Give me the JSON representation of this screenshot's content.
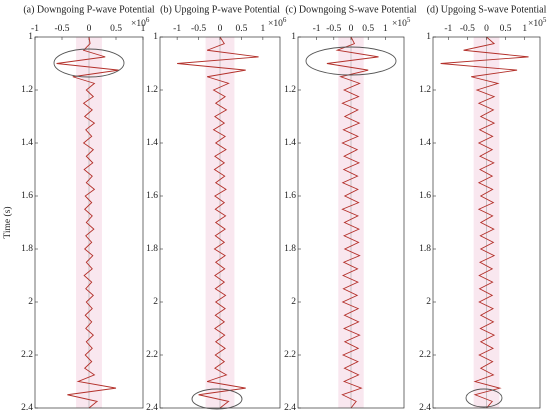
{
  "chart_data": [
    {
      "type": "line",
      "title": "(a) Downgoing P-wave Potential",
      "ylabel": "Time (s)",
      "x_scale": "×10",
      "x_scale_exponent": "6",
      "xlim": [
        -1,
        1
      ],
      "xticks": [
        -1,
        -0.5,
        0,
        0.5,
        1
      ],
      "ylim": [
        1,
        2.4
      ],
      "y_inverted": true,
      "yticks": [
        1,
        1.2,
        1.4,
        1.6,
        1.8,
        2,
        2.2,
        2.4
      ],
      "y": [
        1,
        1.025,
        1.05,
        1.075,
        1.1,
        1.125,
        1.15,
        1.175,
        1.2,
        1.225,
        1.25,
        1.275,
        1.3,
        1.325,
        1.35,
        1.375,
        1.4,
        1.425,
        1.45,
        1.475,
        1.5,
        1.525,
        1.55,
        1.575,
        1.6,
        1.625,
        1.65,
        1.675,
        1.7,
        1.725,
        1.75,
        1.775,
        1.8,
        1.825,
        1.85,
        1.875,
        1.9,
        1.925,
        1.95,
        1.975,
        2,
        2.025,
        2.05,
        2.075,
        2.1,
        2.125,
        2.15,
        2.175,
        2.2,
        2.225,
        2.25,
        2.275,
        2.3,
        2.325,
        2.35,
        2.375,
        2.4
      ],
      "series": [
        {
          "color": "#b3302a",
          "values": [
            0,
            0.02,
            -0.1,
            0.3,
            -0.6,
            0.55,
            -0.3,
            0.1,
            -0.05,
            0.08,
            -0.1,
            0.06,
            -0.08,
            0.1,
            -0.06,
            0.05,
            -0.1,
            0.08,
            -0.05,
            0.07,
            -0.09,
            0.06,
            -0.05,
            0.1,
            -0.07,
            0.05,
            -0.08,
            0.06,
            -0.05,
            0.09,
            -0.06,
            0.05,
            -0.08,
            0.07,
            -0.05,
            0.06,
            -0.09,
            0.05,
            -0.06,
            0.08,
            -0.05,
            0.06,
            -0.07,
            0.05,
            -0.06,
            0.08,
            -0.05,
            0.06,
            -0.07,
            0.05,
            -0.08,
            0.1,
            -0.2,
            0.5,
            -0.4,
            0.15,
            0
          ]
        }
      ]
    },
    {
      "type": "line",
      "title": "(b) Upgoing P-wave Potential",
      "x_scale": "×10",
      "x_scale_exponent": "6",
      "xlim": [
        -1.4,
        1.4
      ],
      "xticks": [
        -1,
        -0.5,
        0,
        0.5,
        1
      ],
      "ylim": [
        1,
        2.4
      ],
      "y_inverted": true,
      "yticks": [
        1,
        1.2,
        1.4,
        1.6,
        1.8,
        2,
        2.2,
        2.4
      ],
      "y": [
        1,
        1.025,
        1.05,
        1.075,
        1.1,
        1.125,
        1.15,
        1.175,
        1.2,
        1.225,
        1.25,
        1.275,
        1.3,
        1.325,
        1.35,
        1.375,
        1.4,
        1.425,
        1.45,
        1.475,
        1.5,
        1.525,
        1.55,
        1.575,
        1.6,
        1.625,
        1.65,
        1.675,
        1.7,
        1.725,
        1.75,
        1.775,
        1.8,
        1.825,
        1.85,
        1.875,
        1.9,
        1.925,
        1.95,
        1.975,
        2,
        2.025,
        2.05,
        2.075,
        2.1,
        2.125,
        2.15,
        2.175,
        2.2,
        2.225,
        2.25,
        2.275,
        2.3,
        2.325,
        2.35,
        2.375,
        2.4
      ],
      "series": [
        {
          "color": "#b3302a",
          "values": [
            0,
            0.1,
            -0.3,
            0.9,
            -1.0,
            0.6,
            -0.3,
            0.2,
            -0.15,
            0.12,
            -0.1,
            0.15,
            -0.12,
            0.1,
            -0.15,
            0.12,
            -0.1,
            0.14,
            -0.12,
            0.1,
            -0.13,
            0.11,
            -0.1,
            0.14,
            -0.12,
            0.1,
            -0.11,
            0.13,
            -0.1,
            0.12,
            -0.11,
            0.1,
            -0.13,
            0.12,
            -0.1,
            0.11,
            -0.12,
            0.1,
            -0.11,
            0.13,
            -0.1,
            0.12,
            -0.11,
            0.1,
            -0.12,
            0.11,
            -0.1,
            0.12,
            -0.11,
            0.1,
            -0.12,
            0.15,
            -0.3,
            0.6,
            -0.5,
            0.2,
            0
          ]
        }
      ]
    },
    {
      "type": "line",
      "title": "(c) Downgoing S-wave Potential",
      "x_scale": "×10",
      "x_scale_exponent": "5",
      "xlim": [
        -1.54,
        1.54
      ],
      "xticks": [
        -1,
        -0.5,
        0,
        0.5,
        1
      ],
      "ylim": [
        1,
        2.4
      ],
      "y_inverted": true,
      "yticks": [
        1,
        1.2,
        1.4,
        1.6,
        1.8,
        2,
        2.2,
        2.4
      ],
      "y": [
        1,
        1.025,
        1.05,
        1.075,
        1.1,
        1.125,
        1.15,
        1.175,
        1.2,
        1.225,
        1.25,
        1.275,
        1.3,
        1.325,
        1.35,
        1.375,
        1.4,
        1.425,
        1.45,
        1.475,
        1.5,
        1.525,
        1.55,
        1.575,
        1.6,
        1.625,
        1.65,
        1.675,
        1.7,
        1.725,
        1.75,
        1.775,
        1.8,
        1.825,
        1.85,
        1.875,
        1.9,
        1.925,
        1.95,
        1.975,
        2,
        2.025,
        2.05,
        2.075,
        2.1,
        2.125,
        2.15,
        2.175,
        2.2,
        2.225,
        2.25,
        2.275,
        2.3,
        2.325,
        2.35,
        2.375,
        2.4
      ],
      "series": [
        {
          "color": "#b3302a",
          "values": [
            0,
            0.1,
            -0.4,
            0.8,
            -0.7,
            0.5,
            -0.3,
            0.25,
            -0.2,
            0.22,
            -0.25,
            0.2,
            -0.18,
            0.24,
            -0.22,
            0.2,
            -0.25,
            0.18,
            -0.2,
            0.23,
            -0.21,
            0.19,
            -0.24,
            0.2,
            -0.18,
            0.22,
            -0.25,
            0.2,
            -0.19,
            0.23,
            -0.2,
            0.22,
            -0.18,
            0.25,
            -0.21,
            0.19,
            -0.23,
            0.2,
            -0.22,
            0.18,
            -0.24,
            0.21,
            -0.19,
            0.22,
            -0.2,
            0.25,
            -0.18,
            0.21,
            -0.23,
            0.2,
            -0.19,
            0.22,
            -0.2,
            0.3,
            -0.25,
            0.15,
            0
          ]
        }
      ]
    },
    {
      "type": "line",
      "title": "(d) Upgoing S-wave Potential",
      "x_scale": "×10",
      "x_scale_exponent": "5",
      "xlim": [
        -1.4,
        1.4
      ],
      "xticks": [
        -1,
        -0.5,
        0,
        0.5,
        1
      ],
      "ylim": [
        1,
        2.4
      ],
      "y_inverted": true,
      "yticks": [
        1,
        1.2,
        1.4,
        1.6,
        1.8,
        2,
        2.2,
        2.4
      ],
      "y": [
        1,
        1.025,
        1.05,
        1.075,
        1.1,
        1.125,
        1.15,
        1.175,
        1.2,
        1.225,
        1.25,
        1.275,
        1.3,
        1.325,
        1.35,
        1.375,
        1.4,
        1.425,
        1.45,
        1.475,
        1.5,
        1.525,
        1.55,
        1.575,
        1.6,
        1.625,
        1.65,
        1.675,
        1.7,
        1.725,
        1.75,
        1.775,
        1.8,
        1.825,
        1.85,
        1.875,
        1.9,
        1.925,
        1.95,
        1.975,
        2,
        2.025,
        2.05,
        2.075,
        2.1,
        2.125,
        2.15,
        2.175,
        2.2,
        2.225,
        2.25,
        2.275,
        2.3,
        2.325,
        2.35,
        2.375,
        2.4
      ],
      "series": [
        {
          "color": "#b3302a",
          "values": [
            0,
            0.2,
            -0.6,
            1.1,
            -1.2,
            0.8,
            -0.4,
            0.3,
            -0.25,
            0.2,
            -0.2,
            0.18,
            -0.15,
            0.2,
            -0.18,
            0.16,
            -0.2,
            0.15,
            -0.17,
            0.19,
            -0.17,
            0.15,
            -0.2,
            0.16,
            -0.15,
            0.18,
            -0.2,
            0.16,
            -0.15,
            0.19,
            -0.16,
            0.18,
            -0.15,
            0.2,
            -0.17,
            0.15,
            -0.19,
            0.16,
            -0.18,
            0.15,
            -0.19,
            0.17,
            -0.15,
            0.18,
            -0.16,
            0.2,
            -0.15,
            0.17,
            -0.19,
            0.16,
            -0.15,
            0.18,
            -0.3,
            0.35,
            -0.3,
            0.15,
            0
          ]
        }
      ]
    }
  ]
}
